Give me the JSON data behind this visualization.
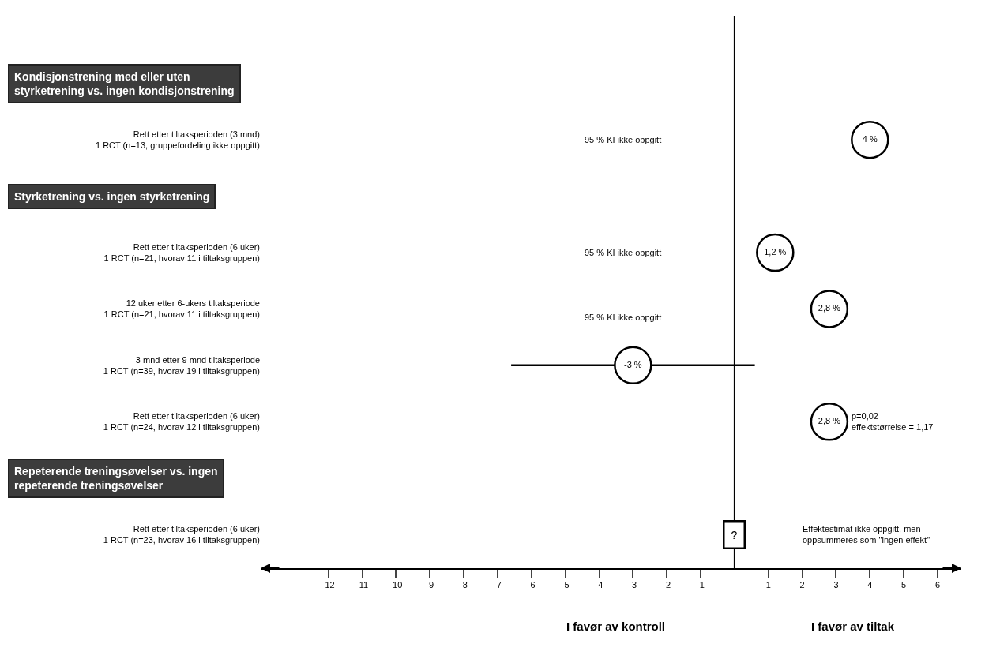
{
  "chart_data": {
    "type": "scatter",
    "categories": [
      null,
      "Rett etter tiltaksperioden (3 mnd)\n1 RCT (n=13, gruppefordeling ikke oppgitt)",
      null,
      "Rett etter tiltaksperioden (6 uker)\n1 RCT (n=21, hvorav 11 i tiltaksgruppen)",
      "12 uker etter 6-ukers tiltaksperiode\n1 RCT (n=21, hvorav 11 i tiltaksgruppen)",
      "3 mnd etter 9 mnd tiltaksperiode\n1 RCT (n=39, hvorav 19 i tiltaksgruppen)",
      "Rett etter tiltaksperioden (6 uker)\n1 RCT (n=24, hvorav 12 i tiltaksgruppen)",
      null,
      "Rett etter tiltaksperioden (6 uker)\n1 RCT (n=23, hvorav 16 i tiltaksgruppen)"
    ],
    "values": [
      null,
      4,
      null,
      1.2,
      2.8,
      -3,
      2.8,
      null,
      null
    ],
    "value_labels": [
      null,
      "4 %",
      null,
      "1,2 %",
      "2,8 %",
      "-3 %",
      "2,8 %",
      null,
      null
    ],
    "errors": [
      null,
      null,
      null,
      null,
      null,
      [
        -6.6,
        0.6
      ],
      null,
      null,
      null
    ],
    "color": "#000000",
    "marker": "circle",
    "grid": false,
    "orientation": "horizontal",
    "xlim": [
      -14,
      6.7
    ],
    "xticks": [
      -12,
      -11,
      -10,
      -9,
      -8,
      -7,
      -6,
      -5,
      -4,
      -3,
      -2,
      -1,
      1,
      2,
      3,
      4,
      5,
      6
    ],
    "ref_lines": [
      {
        "axis": "x",
        "value": 0,
        "label": null
      }
    ],
    "annotations": [
      "Kondisjonstrening med eller uten\nstyrketrening vs. ingen kondisjonstrening",
      "Styrketrening vs. ingen styrketrening",
      "Repeterende treningsøvelser vs. ingen\nrepeterende treningsøvelser",
      "I favør av kontroll",
      "I favør av tiltak",
      "95 % KI ikke oppgitt",
      "95 % KI ikke oppgitt",
      "95 % KI ikke oppgitt",
      "p=0,02\neffektstørrelse = 1,17",
      "?",
      "Effektestimat ikke oppgitt, men\noppsummeres som \"ingen effekt\""
    ]
  }
}
